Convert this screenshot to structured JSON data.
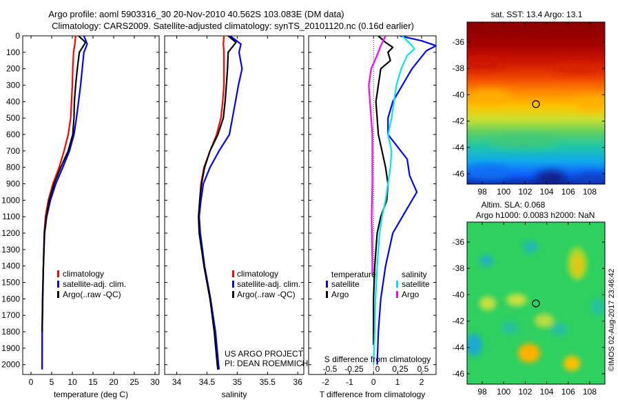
{
  "header": {
    "title_line1": "Argo profile: aoml 5903316_30 20-Nov-2010 40.562S 103.083E (DM data)",
    "title_line2": "Climatology: CARS2009. Satellite-adjusted climatology: synTS_20101120.nc (0.16d earlier)"
  },
  "colors": {
    "climatology": "#ff0000",
    "satellite": "#0000ff",
    "argo": "#000000",
    "sal_satellite": "#00e5ee",
    "sal_argo": "#ff00ff"
  },
  "chart_data": [
    {
      "id": "temperature",
      "type": "line",
      "xlabel": "temperature (deg C)",
      "ylabel": "",
      "xlim": [
        -2,
        31
      ],
      "ylim": [
        2060,
        0
      ],
      "xticks": [
        0,
        5,
        10,
        15,
        20,
        25,
        30
      ],
      "yticks": [
        0,
        100,
        200,
        300,
        400,
        500,
        600,
        700,
        800,
        900,
        1000,
        1100,
        1200,
        1300,
        1400,
        1500,
        1600,
        1700,
        1800,
        1900,
        2000
      ],
      "legend": [
        "climatology",
        "satellite-adj. clim.",
        "Argo(..raw -QC)"
      ],
      "series": [
        {
          "name": "climatology",
          "color": "climatology",
          "x": [
            10.8,
            10.6,
            10.3,
            10.1,
            10.0,
            9.8,
            9.6,
            9.0,
            8.0,
            6.8,
            5.3,
            4.2,
            3.5,
            3.2,
            3.0,
            2.8,
            2.7,
            2.65
          ],
          "y": [
            0,
            50,
            100,
            200,
            300,
            400,
            500,
            600,
            700,
            800,
            900,
            1000,
            1100,
            1200,
            1400,
            1600,
            1800,
            2030
          ]
        },
        {
          "name": "satellite-adj. clim.",
          "color": "satellite",
          "x": [
            12.8,
            13.6,
            12.8,
            12.4,
            12.0,
            11.5,
            11.0,
            10.4,
            9.3,
            7.7,
            6.0,
            4.7,
            3.8,
            3.3,
            3.0,
            2.85,
            2.72,
            2.7
          ],
          "y": [
            0,
            50,
            100,
            200,
            300,
            400,
            500,
            600,
            700,
            800,
            900,
            1000,
            1100,
            1200,
            1400,
            1600,
            1800,
            2030
          ]
        },
        {
          "name": "Argo(..raw -QC)",
          "color": "argo",
          "x": [
            11.5,
            13.2,
            11.7,
            11.2,
            10.8,
            10.5,
            10.4,
            10.1,
            9.0,
            7.2,
            5.6,
            4.4,
            3.7,
            3.25,
            3.0,
            2.8,
            2.7
          ],
          "y": [
            0,
            40,
            100,
            200,
            300,
            400,
            500,
            600,
            700,
            800,
            900,
            1000,
            1100,
            1200,
            1400,
            1600,
            1800
          ]
        }
      ]
    },
    {
      "id": "salinity",
      "type": "line",
      "xlabel": "salinity",
      "ylabel": "",
      "xlim": [
        33.8,
        36.1
      ],
      "ylim": [
        2060,
        0
      ],
      "xticks": [
        34,
        34.5,
        35,
        35.5,
        36
      ],
      "legend": [
        "climatology",
        "satellite-adj. clim.",
        "Argo(..raw -QC)"
      ],
      "series": [
        {
          "name": "climatology",
          "color": "climatology",
          "x": [
            34.78,
            34.77,
            34.78,
            34.78,
            34.78,
            34.76,
            34.73,
            34.66,
            34.55,
            34.45,
            34.4,
            34.38,
            34.37,
            34.38,
            34.45,
            34.55,
            34.63,
            34.68,
            34.69
          ],
          "y": [
            0,
            50,
            100,
            200,
            300,
            400,
            500,
            600,
            700,
            800,
            900,
            1000,
            1100,
            1200,
            1400,
            1600,
            1800,
            2000,
            2030
          ]
        },
        {
          "name": "satellite-adj. clim.",
          "color": "satellite",
          "x": [
            34.88,
            35.06,
            35.03,
            35.08,
            35.02,
            34.97,
            34.92,
            34.87,
            34.7,
            34.55,
            34.44,
            34.4,
            34.37,
            34.39,
            34.46,
            34.56,
            34.64,
            34.69,
            34.7
          ],
          "y": [
            0,
            50,
            100,
            200,
            300,
            400,
            500,
            600,
            700,
            800,
            900,
            1000,
            1100,
            1200,
            1400,
            1600,
            1800,
            2000,
            2030
          ]
        },
        {
          "name": "Argo(..raw -QC)",
          "color": "argo",
          "x": [
            34.85,
            34.98,
            34.85,
            34.84,
            34.82,
            34.8,
            34.77,
            34.68,
            34.55,
            34.46,
            34.41,
            34.38,
            34.36,
            34.37,
            34.45,
            34.55,
            34.62,
            34.67,
            34.68
          ],
          "y": [
            0,
            40,
            100,
            200,
            300,
            400,
            500,
            600,
            700,
            800,
            900,
            1000,
            1100,
            1200,
            1400,
            1600,
            1800,
            2000,
            2030
          ]
        }
      ]
    },
    {
      "id": "difference",
      "type": "line",
      "xlabel": "T difference from climatology",
      "x2label": "S difference from climatology",
      "xlim": [
        -2.7,
        2.6
      ],
      "ylim": [
        2060,
        0
      ],
      "xticks": [
        -2,
        -1,
        0,
        1,
        2
      ],
      "x2ticks": [
        "-0.5",
        "-0.25",
        "0",
        "0.25",
        "0.5"
      ],
      "legend_title_left": "temperature",
      "legend_title_right": "salinity",
      "legend_left": [
        "satellite",
        "Argo"
      ],
      "legend_right": [
        "satellite",
        "Argo"
      ],
      "series": [
        {
          "name": "satellite",
          "color": "satellite",
          "x": [
            1.1,
            2.0,
            2.6,
            2.2,
            1.6,
            1.2,
            0.8,
            0.6,
            0.6,
            1.4,
            1.5,
            1.8,
            1.2,
            0.8,
            0.5,
            0.3,
            0.2,
            0.15
          ],
          "y": [
            0,
            30,
            60,
            90,
            200,
            300,
            400,
            500,
            600,
            750,
            850,
            950,
            1100,
            1200,
            1400,
            1600,
            1800,
            2000
          ]
        },
        {
          "name": "Argo",
          "color": "argo",
          "x": [
            0.2,
            0.5,
            0.8,
            0.6,
            0.7,
            0.3,
            0.1,
            0.2,
            0.35,
            0.5,
            0.6,
            0.55,
            0.3,
            0.15,
            0.05,
            0.0,
            0.0,
            0.0
          ],
          "y": [
            0,
            40,
            70,
            100,
            150,
            200,
            400,
            600,
            700,
            800,
            900,
            1000,
            1100,
            1200,
            1400,
            1600,
            1800,
            1880
          ]
        },
        {
          "name": "satellite",
          "color": "sal_satellite",
          "x": [
            1.2,
            1.6,
            1.7,
            1.4,
            1.15,
            0.95,
            0.85,
            0.75,
            0.6,
            0.75,
            0.7,
            0.5,
            0.35,
            0.25,
            0.15,
            0.08,
            0.05,
            0.0
          ],
          "y": [
            0,
            60,
            80,
            120,
            200,
            300,
            400,
            500,
            600,
            700,
            800,
            1000,
            1100,
            1200,
            1400,
            1600,
            1800,
            2000
          ]
        },
        {
          "name": "Argo",
          "color": "sal_argo",
          "x": [
            0.5,
            0.3,
            0.2,
            -0.1,
            -0.2,
            -0.15,
            -0.1,
            -0.05,
            -0.05,
            -0.05,
            -0.05,
            -0.08,
            -0.06,
            -0.05,
            -0.05
          ],
          "y": [
            0,
            60,
            100,
            200,
            300,
            400,
            500,
            600,
            700,
            800,
            900,
            1100,
            1300,
            1400,
            1450
          ]
        }
      ]
    }
  ],
  "maps": [
    {
      "title": "sat. SST: 13.4 Argo: 13.1",
      "lat_ticks": [
        "-36",
        "-38",
        "-40",
        "-42",
        "-44",
        "-46"
      ],
      "lon_ticks": [
        "98",
        "100",
        "102",
        "104",
        "106",
        "108"
      ]
    },
    {
      "title_line1": "Altim. SLA: 0.068",
      "title_line2": "Argo h1000: 0.0083 h2000: NaN",
      "lat_ticks": [
        "-36",
        "-38",
        "-40",
        "-42",
        "-44",
        "-46"
      ],
      "lon_ticks": [
        "98",
        "100",
        "102",
        "104",
        "106",
        "108"
      ]
    }
  ],
  "notes": {
    "project_line1": "US ARGO PROJECT",
    "project_line2": "PI: DEAN ROEMMICH",
    "credit": "©IMOS 02-Aug-2017 23:46:42"
  }
}
